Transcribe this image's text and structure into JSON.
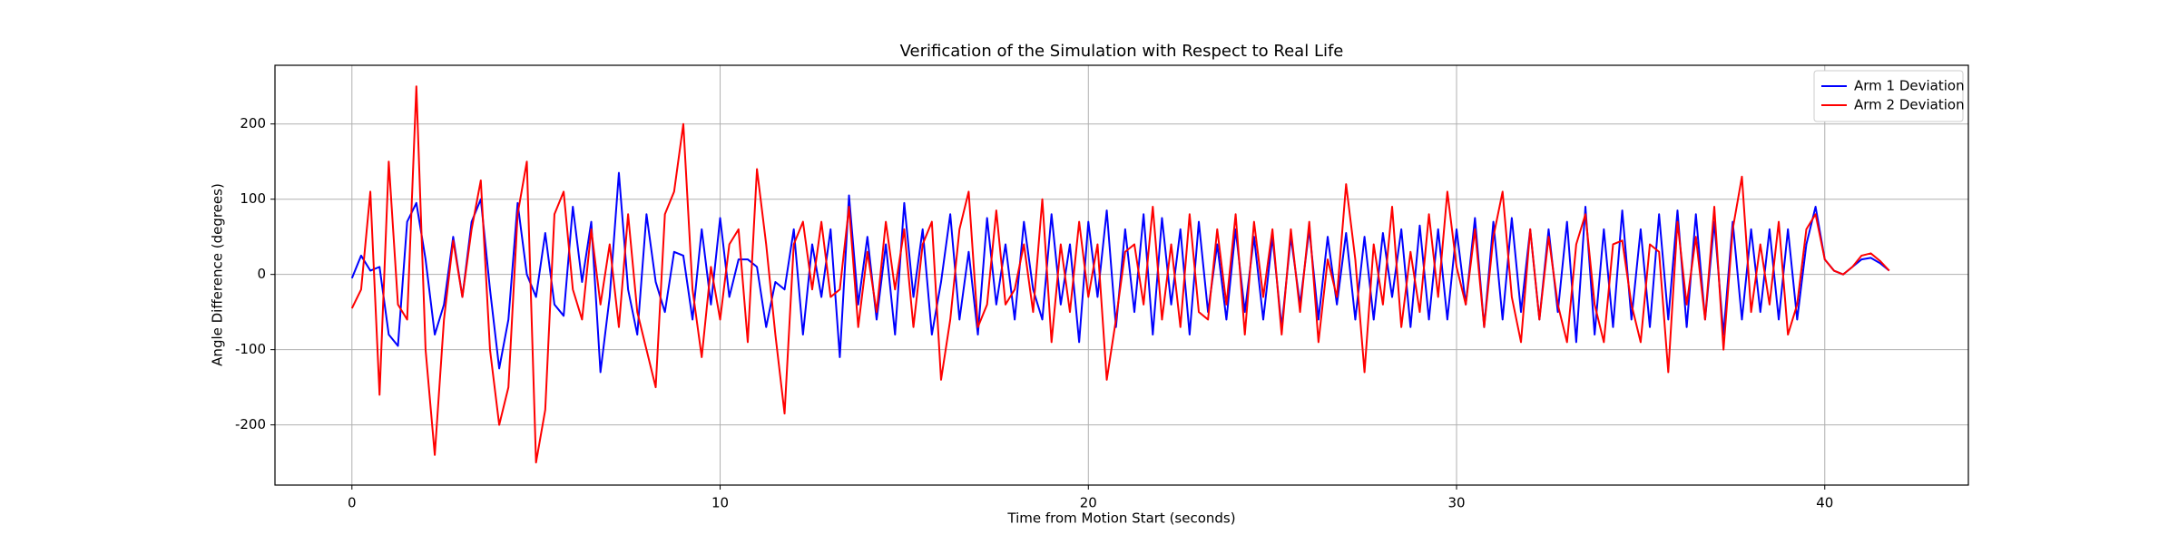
{
  "chart_data": {
    "type": "line",
    "title": "Verification of the Simulation with Respect to Real Life",
    "x_label": "Time from Motion Start (seconds)",
    "y_label": "Angle Difference (degrees)",
    "x": [
      0,
      0.25,
      0.5,
      0.75,
      1,
      1.25,
      1.5,
      1.75,
      2,
      2.25,
      2.5,
      2.75,
      3,
      3.25,
      3.5,
      3.75,
      4,
      4.25,
      4.5,
      4.75,
      5,
      5.25,
      5.5,
      5.75,
      6,
      6.25,
      6.5,
      6.75,
      7,
      7.25,
      7.5,
      7.75,
      8,
      8.25,
      8.5,
      8.75,
      9,
      9.25,
      9.5,
      9.75,
      10,
      10.25,
      10.5,
      10.75,
      11,
      11.25,
      11.5,
      11.75,
      12,
      12.25,
      12.5,
      12.75,
      13,
      13.25,
      13.5,
      13.75,
      14,
      14.25,
      14.5,
      14.75,
      15,
      15.25,
      15.5,
      15.75,
      16,
      16.25,
      16.5,
      16.75,
      17,
      17.25,
      17.5,
      17.75,
      18,
      18.25,
      18.5,
      18.75,
      19,
      19.25,
      19.5,
      19.75,
      20,
      20.25,
      20.5,
      20.75,
      21,
      21.25,
      21.5,
      21.75,
      22,
      22.25,
      22.5,
      22.75,
      23,
      23.25,
      23.5,
      23.75,
      24,
      24.25,
      24.5,
      24.75,
      25,
      25.25,
      25.5,
      25.75,
      26,
      26.25,
      26.5,
      26.75,
      27,
      27.25,
      27.5,
      27.75,
      28,
      28.25,
      28.5,
      28.75,
      29,
      29.25,
      29.5,
      29.75,
      30,
      30.25,
      30.5,
      30.75,
      31,
      31.25,
      31.5,
      31.75,
      32,
      32.25,
      32.5,
      32.75,
      33,
      33.25,
      33.5,
      33.75,
      34,
      34.25,
      34.5,
      34.75,
      35,
      35.25,
      35.5,
      35.75,
      36,
      36.25,
      36.5,
      36.75,
      37,
      37.25,
      37.5,
      37.75,
      38,
      38.25,
      38.5,
      38.75,
      39,
      39.25,
      39.5,
      39.75,
      40,
      40.25,
      40.5,
      40.75,
      41,
      41.25,
      41.5,
      41.75
    ],
    "series": [
      {
        "name": "Arm 1 Deviation",
        "color": "#0000ff",
        "values": [
          -5,
          25,
          5,
          10,
          -80,
          -95,
          70,
          95,
          20,
          -80,
          -40,
          50,
          -30,
          70,
          100,
          -20,
          -125,
          -60,
          95,
          0,
          -30,
          55,
          -40,
          -55,
          90,
          -10,
          70,
          -130,
          -30,
          135,
          -20,
          -80,
          80,
          -10,
          -50,
          30,
          25,
          -60,
          60,
          -40,
          75,
          -30,
          20,
          20,
          10,
          -70,
          -10,
          -20,
          60,
          -80,
          40,
          -30,
          60,
          -110,
          105,
          -40,
          50,
          -60,
          40,
          -80,
          95,
          -30,
          60,
          -80,
          -10,
          80,
          -60,
          30,
          -80,
          75,
          -40,
          40,
          -60,
          70,
          -20,
          -60,
          80,
          -40,
          40,
          -90,
          70,
          -30,
          85,
          -70,
          60,
          -50,
          80,
          -80,
          75,
          -40,
          60,
          -80,
          70,
          -50,
          40,
          -60,
          60,
          -50,
          50,
          -60,
          50,
          -70,
          50,
          -40,
          60,
          -60,
          50,
          -40,
          55,
          -60,
          50,
          -60,
          55,
          -30,
          60,
          -70,
          65,
          -60,
          60,
          -60,
          60,
          -40,
          75,
          -70,
          70,
          -60,
          75,
          -50,
          60,
          -60,
          60,
          -50,
          70,
          -90,
          90,
          -80,
          60,
          -70,
          85,
          -60,
          60,
          -70,
          80,
          -60,
          85,
          -70,
          80,
          -60,
          70,
          -80,
          70,
          -60,
          60,
          -50,
          60,
          -60,
          60,
          -60,
          40,
          90,
          20,
          5,
          0,
          10,
          20,
          22,
          15,
          5
        ]
      },
      {
        "name": "Arm 2 Deviation",
        "color": "#ff0000",
        "values": [
          -45,
          -20,
          110,
          -160,
          150,
          -40,
          -60,
          250,
          -100,
          -240,
          -60,
          45,
          -30,
          60,
          125,
          -100,
          -200,
          -150,
          80,
          150,
          -250,
          -180,
          80,
          110,
          -20,
          -60,
          60,
          -40,
          40,
          -70,
          80,
          -50,
          -100,
          -150,
          80,
          110,
          200,
          -20,
          -110,
          10,
          -60,
          40,
          60,
          -90,
          140,
          40,
          -80,
          -185,
          40,
          70,
          -20,
          70,
          -30,
          -20,
          90,
          -70,
          30,
          -50,
          70,
          -20,
          60,
          -70,
          40,
          70,
          -140,
          -60,
          60,
          110,
          -70,
          -40,
          85,
          -40,
          -20,
          40,
          -50,
          100,
          -90,
          40,
          -50,
          70,
          -30,
          40,
          -140,
          -60,
          30,
          40,
          -40,
          90,
          -60,
          40,
          -70,
          80,
          -50,
          -60,
          60,
          -40,
          80,
          -80,
          70,
          -30,
          60,
          -80,
          60,
          -50,
          70,
          -90,
          20,
          -30,
          120,
          20,
          -130,
          40,
          -40,
          90,
          -70,
          30,
          -50,
          80,
          -30,
          110,
          10,
          -40,
          60,
          -70,
          50,
          110,
          -30,
          -90,
          60,
          -60,
          50,
          -40,
          -90,
          40,
          80,
          -40,
          -90,
          40,
          45,
          -40,
          -90,
          40,
          30,
          -130,
          70,
          -40,
          50,
          -60,
          90,
          -100,
          60,
          130,
          -50,
          40,
          -40,
          70,
          -80,
          -40,
          60,
          80,
          20,
          5,
          0,
          10,
          25,
          28,
          18,
          5
        ]
      }
    ],
    "xlim": [
      -2.09,
      43.9
    ],
    "ylim": [
      -280,
      278
    ],
    "xticks": [
      0,
      10,
      20,
      30,
      40
    ],
    "yticks": [
      -200,
      -100,
      0,
      100,
      200
    ],
    "grid": true,
    "legend": "upper right"
  }
}
